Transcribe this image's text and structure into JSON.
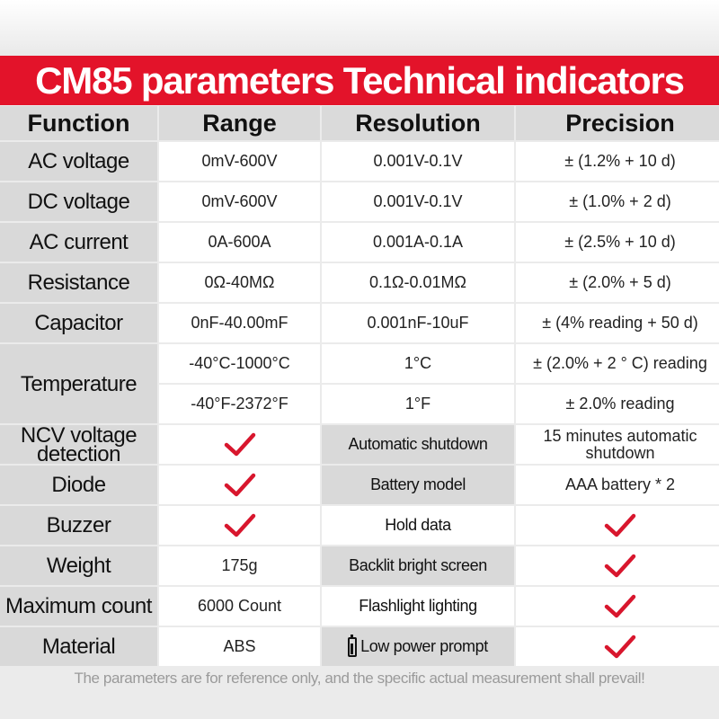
{
  "title": "CM85 parameters Technical indicators",
  "headers": {
    "function": "Function",
    "range": "Range",
    "resolution": "Resolution",
    "precision": "Precision"
  },
  "rows": {
    "ac_voltage": {
      "function": "AC voltage",
      "range": "0mV-600V",
      "resolution": "0.001V-0.1V",
      "precision": "± (1.2% + 10 d)"
    },
    "dc_voltage": {
      "function": "DC voltage",
      "range": "0mV-600V",
      "resolution": "0.001V-0.1V",
      "precision": "± (1.0% + 2 d)"
    },
    "ac_current": {
      "function": "AC current",
      "range": "0A-600A",
      "resolution": "0.001A-0.1A",
      "precision": "± (2.5% + 10 d)"
    },
    "resistance": {
      "function": "Resistance",
      "range": "0Ω-40MΩ",
      "resolution": "0.1Ω-0.01MΩ",
      "precision": "± (2.0% + 5 d)"
    },
    "capacitor": {
      "function": "Capacitor",
      "range": "0nF-40.00mF",
      "resolution": "0.001nF-10uF",
      "precision": "± (4% reading + 50 d)"
    },
    "temperature": {
      "function": "Temperature",
      "celsius": {
        "range": "-40°C-1000°C",
        "resolution": "1°C",
        "precision": "± (2.0% + 2 ° C) reading"
      },
      "fahrenheit": {
        "range": "-40°F-2372°F",
        "resolution": "1°F",
        "precision": "± 2.0% reading"
      }
    }
  },
  "left_features": {
    "ncv": {
      "line1": "NCV voltage",
      "line2": "detection",
      "supported": true
    },
    "diode": {
      "label": "Diode",
      "supported": true
    },
    "buzzer": {
      "label": "Buzzer",
      "supported": true
    },
    "weight": {
      "label": "Weight",
      "value": "175g"
    },
    "max_count": {
      "label": "Maximum count",
      "value": "6000 Count"
    },
    "material": {
      "label": "Material",
      "value": "ABS"
    }
  },
  "right_features": {
    "auto_shutdown": {
      "label": "Automatic shutdown",
      "line1": "15 minutes automatic",
      "line2": "shutdown"
    },
    "battery_model": {
      "label": "Battery model",
      "value": "AAA battery * 2"
    },
    "hold_data": {
      "label": "Hold data",
      "supported": true
    },
    "backlit": {
      "label": "Backlit bright screen",
      "supported": true
    },
    "flashlight": {
      "label": "Flashlight lighting",
      "supported": true
    },
    "low_power": {
      "label": "Low power prompt",
      "supported": true,
      "icon": "battery-icon"
    }
  },
  "footer": "The parameters are for reference only, and the specific actual measurement shall prevail!",
  "colors": {
    "banner": "#e3132a",
    "check": "#d8162d",
    "label_bg": "#d9d9d9",
    "value_bg": "#ffffff",
    "page_bg": "#ebebeb"
  }
}
